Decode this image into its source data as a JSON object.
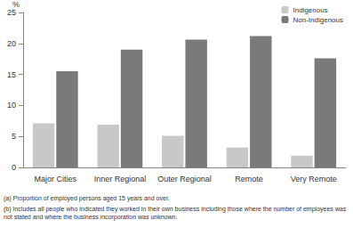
{
  "chart_data": {
    "type": "bar",
    "ylabel": "%",
    "categories": [
      "Major Cities",
      "Inner Regional",
      "Outer Regional",
      "Remote",
      "Very Remote"
    ],
    "series": [
      {
        "name": "Indigenous",
        "color": "#c8c8c8",
        "values": [
          7.1,
          6.9,
          5.1,
          3.2,
          1.9
        ]
      },
      {
        "name": "Non-Indigenous",
        "color": "#7a7a7a",
        "values": [
          15.5,
          19.0,
          20.6,
          21.2,
          17.6
        ]
      }
    ],
    "ylim": [
      0,
      25
    ],
    "yticks": [
      0,
      5,
      10,
      15,
      20,
      25
    ],
    "grid": false,
    "legend": "top-right",
    "annotations": [
      "(a) Proportion of employed persons aged 15 years and over.",
      "(b) Includes all people who indicated they worked in their own business including those where the number of employees was not stated and where the business incorporation was unknown."
    ]
  }
}
